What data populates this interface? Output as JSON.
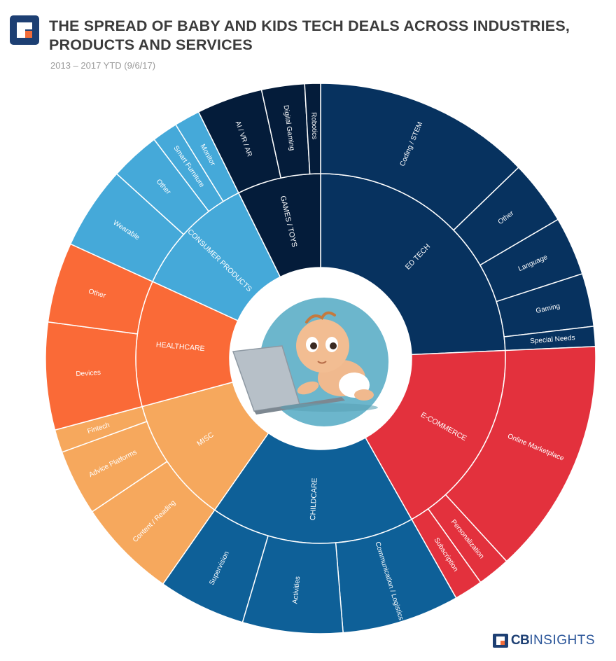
{
  "header": {
    "title": "THE SPREAD OF BABY AND KIDS TECH DEALS ACROSS INDUSTRIES, PRODUCTS AND SERVICES",
    "subtitle": "2013 – 2017 YTD (9/6/17)"
  },
  "brand": {
    "bold": "CB",
    "thin": "INSIGHTS"
  },
  "colors": {
    "ed_tech": "#07325f",
    "e_commerce": "#e3313d",
    "childcare": "#0e6098",
    "misc": "#f6a85d",
    "healthcare": "#fa6a37",
    "consumer_products": "#45a9d9",
    "games_toys": "#041c3a",
    "logo_blue": "#1d3f73",
    "logo_orange": "#f26c3a"
  },
  "chart_data": {
    "type": "sunburst",
    "title": "THE SPREAD OF BABY AND KIDS TECH DEALS ACROSS INDUSTRIES, PRODUCTS AND SERVICES",
    "categories": [
      {
        "name": "ED TECH",
        "color": "#07325f",
        "children": [
          {
            "name": "Coding / STEM",
            "value": 15.2
          },
          {
            "name": "Other",
            "value": 4.5
          },
          {
            "name": "Language",
            "value": 4.1
          },
          {
            "name": "Gaming",
            "value": 3.7
          },
          {
            "name": "Special Needs",
            "value": 1.4
          }
        ]
      },
      {
        "name": "E-COMMERCE",
        "color": "#e3313d",
        "children": [
          {
            "name": "Online Marketplace",
            "value": 16.5
          },
          {
            "name": "Personalization",
            "value": 2.3
          },
          {
            "name": "Subscription",
            "value": 2.0
          }
        ]
      },
      {
        "name": "CHILDCARE",
        "color": "#0e6098",
        "children": [
          {
            "name": "Communication / Logistics",
            "value": 8.2
          },
          {
            "name": "Activities",
            "value": 7.0
          },
          {
            "name": "Supervision",
            "value": 6.1
          }
        ]
      },
      {
        "name": "MISC",
        "color": "#f6a85d",
        "children": [
          {
            "name": "Content / Reading",
            "value": 7.0
          },
          {
            "name": "Advice Platforms",
            "value": 4.6
          },
          {
            "name": "Fintech",
            "value": 1.6
          }
        ]
      },
      {
        "name": "HEALTHCARE",
        "color": "#fa6a37",
        "children": [
          {
            "name": "Devices",
            "value": 7.5
          },
          {
            "name": "Other",
            "value": 5.6
          }
        ]
      },
      {
        "name": "CONSUMER PRODUCTS",
        "color": "#45a9d9",
        "children": [
          {
            "name": "Wearable",
            "value": 5.8
          },
          {
            "name": "Other",
            "value": 3.5
          },
          {
            "name": "Smart Furniture",
            "value": 1.8
          },
          {
            "name": "Monitor",
            "value": 1.8
          }
        ]
      },
      {
        "name": "GAMES / TOYS",
        "color": "#041c3a",
        "children": [
          {
            "name": "AI / VR / AR",
            "value": 4.6
          },
          {
            "name": "Digital Gaming",
            "value": 3.0
          },
          {
            "name": "Robotics",
            "value": 1.1
          }
        ]
      }
    ]
  }
}
